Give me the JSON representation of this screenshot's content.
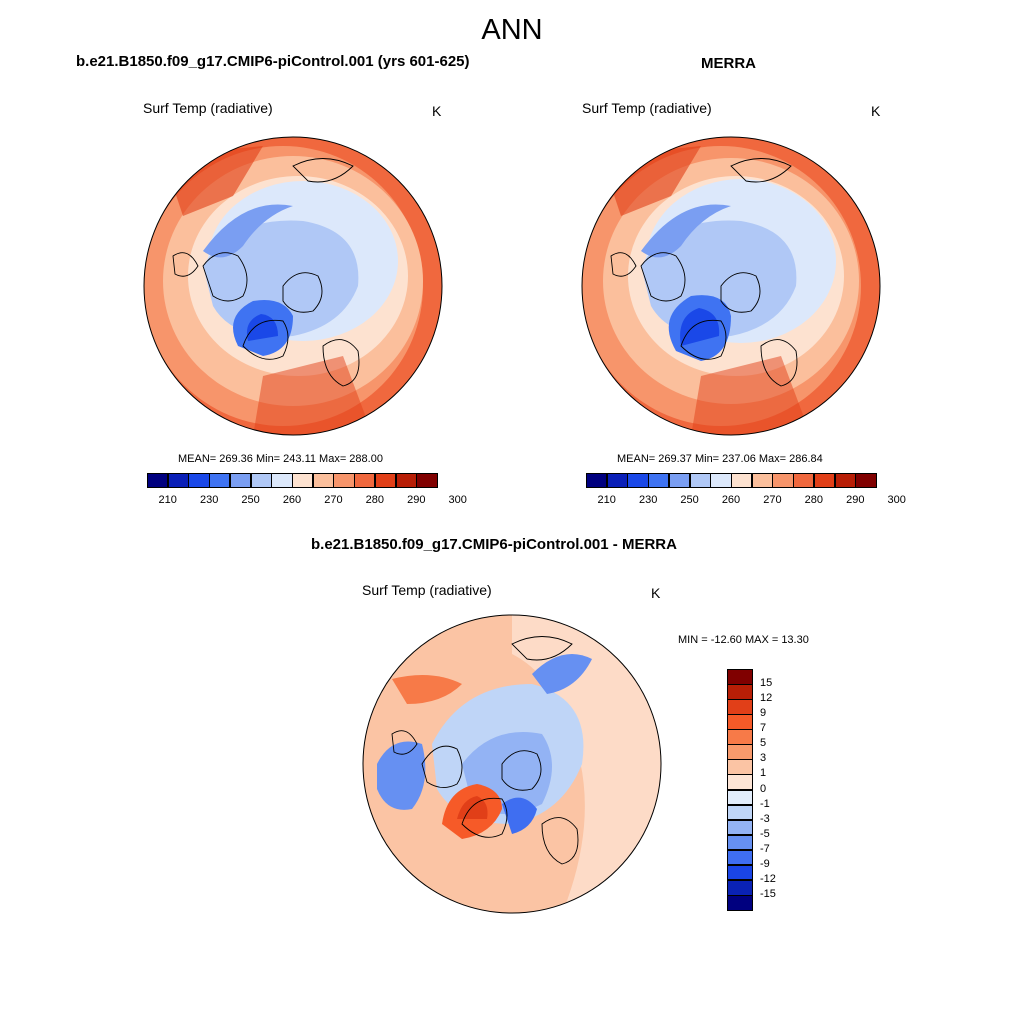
{
  "page_title": "ANN",
  "panels": [
    {
      "id": "model",
      "case_title": "b.e21.B1850.f09_g17.CMIP6-piControl.001 (yrs 601-625)",
      "variable": "Surf Temp (radiative)",
      "units": "K",
      "stats": "MEAN= 269.36  Min= 243.11  Max= 288.00"
    },
    {
      "id": "obs",
      "case_title": "MERRA",
      "variable": "Surf Temp (radiative)",
      "units": "K",
      "stats": "MEAN= 269.37  Min= 237.06  Max= 286.84"
    },
    {
      "id": "diff",
      "case_title": "b.e21.B1850.f09_g17.CMIP6-piControl.001 - MERRA",
      "variable": "Surf Temp (radiative)",
      "units": "K",
      "stats": "MIN = -12.60 MAX =  13.30"
    }
  ],
  "colorbar_abs": {
    "labels": [
      "210",
      "230",
      "250",
      "260",
      "270",
      "280",
      "290",
      "300"
    ],
    "colors": [
      "#00007f",
      "#0a1fb8",
      "#1a48e8",
      "#3f73f2",
      "#7a9ef2",
      "#b0c8f6",
      "#dce8fb",
      "#fde2d0",
      "#fbbf9c",
      "#f7956b",
      "#f0683e",
      "#e13f18",
      "#b81e06",
      "#800000"
    ]
  },
  "colorbar_diff": {
    "labels": [
      "15",
      "12",
      "9",
      "7",
      "5",
      "3",
      "1",
      "0",
      "-1",
      "-3",
      "-5",
      "-7",
      "-9",
      "-12",
      "-15"
    ],
    "colors": [
      "#800000",
      "#b81e06",
      "#e13f18",
      "#f65a28",
      "#f77a48",
      "#f89a6c",
      "#fbc4a4",
      "#fde5d6",
      "#e2edfb",
      "#bfd5f7",
      "#93b3f4",
      "#6690f2",
      "#3f6ef1",
      "#1a45e6",
      "#0a22b5",
      "#00007f"
    ]
  }
}
